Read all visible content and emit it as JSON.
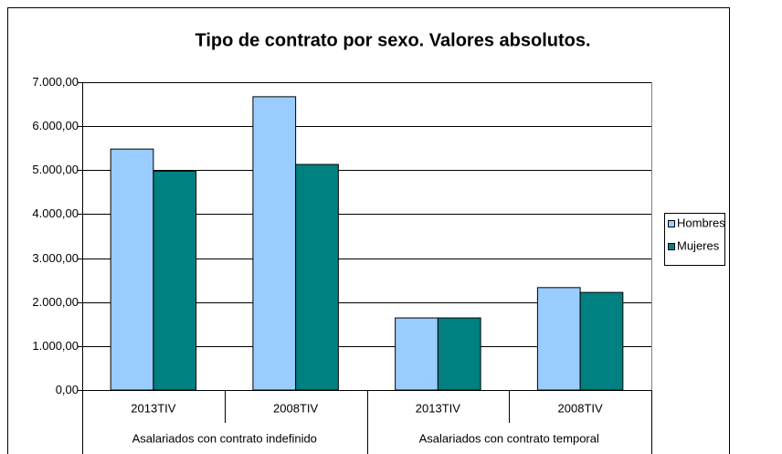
{
  "chart_data": {
    "type": "bar",
    "title": "Tipo de contrato por sexo. Valores absolutos.",
    "categories": [
      "2013TIV",
      "2008TIV",
      "2013TIV",
      "2008TIV"
    ],
    "category_groups": [
      "Asalariados con contrato indefinido",
      "Asalariados con contrato temporal"
    ],
    "series": [
      {
        "name": "Hombres",
        "color": "#99ccff",
        "values": [
          5480,
          6670,
          1640,
          2330
        ]
      },
      {
        "name": "Mujeres",
        "color": "#008080",
        "values": [
          4980,
          5130,
          1640,
          2220
        ]
      }
    ],
    "ylim": [
      0,
      7000
    ],
    "yticks": [
      {
        "value": 0,
        "label": "0,00"
      },
      {
        "value": 1000,
        "label": "1.000,00"
      },
      {
        "value": 2000,
        "label": "2.000,00"
      },
      {
        "value": 3000,
        "label": "3.000,00"
      },
      {
        "value": 4000,
        "label": "4.000,00"
      },
      {
        "value": 5000,
        "label": "5.000,00"
      },
      {
        "value": 6000,
        "label": "6.000,00"
      },
      {
        "value": 7000,
        "label": "7.000,00"
      }
    ],
    "grid": true,
    "legend": "right"
  }
}
